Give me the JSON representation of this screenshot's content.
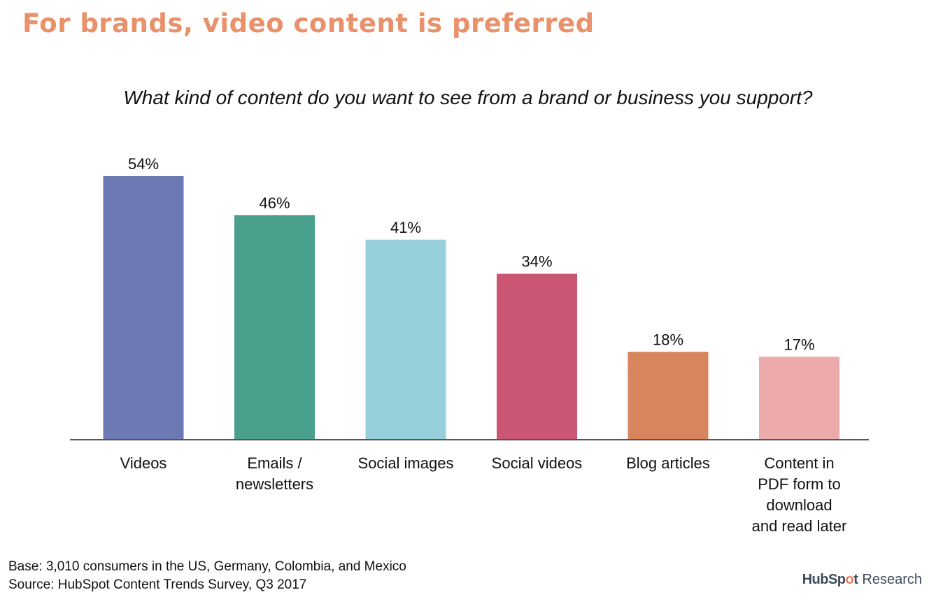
{
  "header": {
    "headline": "For brands, video content is preferred",
    "question": "What kind of content do you want to see from a brand or business you support?"
  },
  "colors": {
    "headline": "#e8916a",
    "axis": "#555555"
  },
  "chart_data": {
    "type": "bar",
    "title": "For brands, video content is preferred",
    "subtitle": "What kind of content do you want to see from a brand or business you support?",
    "categories": [
      "Videos",
      "Emails / newsletters",
      "Social images",
      "Social videos",
      "Blog articles",
      "Content in PDF form to download and read later"
    ],
    "category_lines": [
      [
        "Videos"
      ],
      [
        "Emails /",
        "newsletters"
      ],
      [
        "Social images"
      ],
      [
        "Social videos"
      ],
      [
        "Blog articles"
      ],
      [
        "Content in",
        "PDF form to",
        "download",
        "and read later"
      ]
    ],
    "values": [
      54,
      46,
      41,
      34,
      18,
      17
    ],
    "value_labels": [
      "54%",
      "46%",
      "41%",
      "34%",
      "18%",
      "17%"
    ],
    "bar_colors": [
      "#6e78b3",
      "#48a08d",
      "#97d0db",
      "#cb5673",
      "#d8855e",
      "#ecaaab"
    ],
    "ylim": [
      0,
      54
    ],
    "grid": false,
    "xlabel": "",
    "ylabel": ""
  },
  "footer": {
    "base": "Base: 3,010 consumers in the US, Germany, Colombia, and Mexico",
    "source": "Source: HubSpot Content Trends Survey, Q3 2017",
    "brand_prefix": "HubSp",
    "brand_dot": "o",
    "brand_suffix": "t",
    "brand_research": "Research"
  }
}
